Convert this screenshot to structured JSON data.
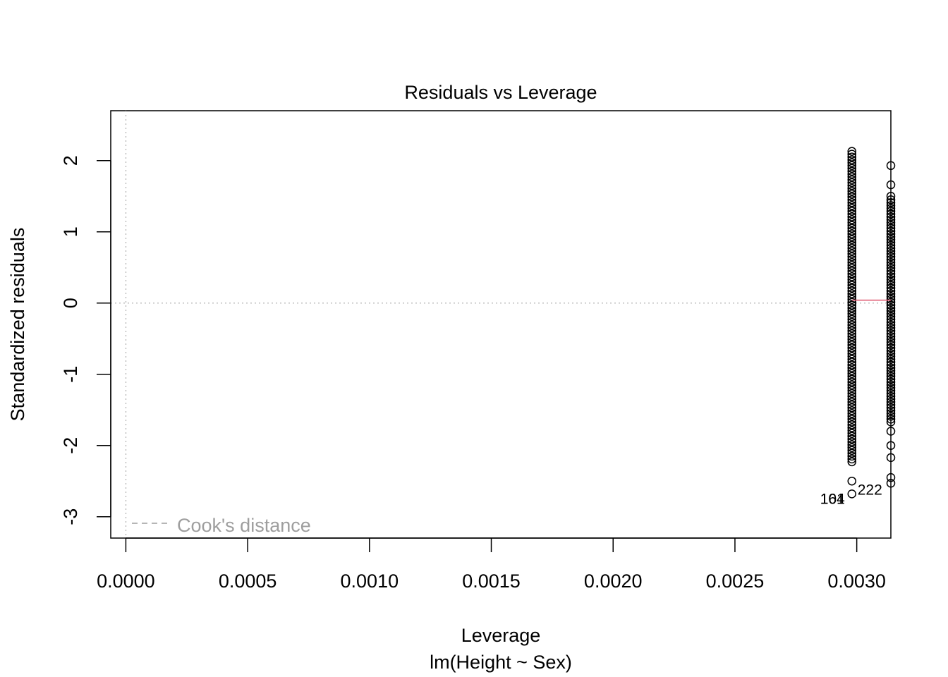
{
  "chart_data": {
    "type": "scatter",
    "title": "Residuals vs Leverage",
    "xlabel": "Leverage",
    "subtitle": "lm(Height ~ Sex)",
    "ylabel": "Standardized residuals",
    "xlim": [
      -6.2e-05,
      0.00314
    ],
    "ylim": [
      -3.3,
      2.7
    ],
    "x_ticks": [
      0.0,
      0.0005,
      0.001,
      0.0015,
      0.002,
      0.0025,
      0.003
    ],
    "x_tick_labels": [
      "0.0000",
      "0.0005",
      "0.0010",
      "0.0015",
      "0.0020",
      "0.0025",
      "0.0030"
    ],
    "y_ticks": [
      -3,
      -2,
      -1,
      0,
      1,
      2
    ],
    "y_tick_labels": [
      "-3",
      "-2",
      "-1",
      "0",
      "1",
      "2"
    ],
    "reference_lines": {
      "x": 0,
      "y": 0,
      "style": "dotted",
      "color": "#bebebe"
    },
    "point_color": "#000000",
    "smoother_color": "#DF536B",
    "smoother": {
      "x": [
        0.00298,
        0.00314
      ],
      "y": [
        0.04,
        0.04
      ]
    },
    "series": [
      {
        "x": 0.00298,
        "y": [
          2.13,
          2.09,
          2.05,
          2.01,
          1.97,
          1.93,
          1.89,
          1.85,
          1.81,
          1.77,
          1.73,
          1.69,
          1.65,
          1.61,
          1.57,
          1.53,
          1.49,
          1.45,
          1.41,
          1.37,
          1.33,
          1.29,
          1.25,
          1.21,
          1.17,
          1.13,
          1.09,
          1.05,
          1.01,
          0.97,
          0.93,
          0.89,
          0.85,
          0.81,
          0.77,
          0.73,
          0.69,
          0.65,
          0.61,
          0.57,
          0.53,
          0.49,
          0.45,
          0.41,
          0.37,
          0.33,
          0.29,
          0.25,
          0.21,
          0.17,
          0.13,
          0.09,
          0.05,
          0.01,
          -0.03,
          -0.07,
          -0.11,
          -0.15,
          -0.19,
          -0.23,
          -0.27,
          -0.31,
          -0.35,
          -0.39,
          -0.43,
          -0.47,
          -0.51,
          -0.55,
          -0.59,
          -0.63,
          -0.67,
          -0.71,
          -0.75,
          -0.79,
          -0.83,
          -0.87,
          -0.91,
          -0.95,
          -0.99,
          -1.03,
          -1.07,
          -1.11,
          -1.15,
          -1.19,
          -1.23,
          -1.27,
          -1.31,
          -1.35,
          -1.39,
          -1.43,
          -1.47,
          -1.51,
          -1.55,
          -1.59,
          -1.63,
          -1.67,
          -1.71,
          -1.75,
          -1.79,
          -1.83,
          -1.87,
          -1.91,
          -1.95,
          -1.99,
          -2.03,
          -2.07,
          -2.11,
          -2.15,
          -2.19,
          -2.23,
          -2.5,
          -2.68
        ]
      },
      {
        "x": 0.00314,
        "y": [
          1.93,
          1.66,
          1.5,
          1.45,
          1.41,
          1.37,
          1.33,
          1.29,
          1.25,
          1.21,
          1.17,
          1.13,
          1.09,
          1.05,
          1.01,
          0.97,
          0.93,
          0.89,
          0.85,
          0.81,
          0.77,
          0.73,
          0.69,
          0.65,
          0.61,
          0.57,
          0.53,
          0.49,
          0.45,
          0.41,
          0.37,
          0.33,
          0.29,
          0.25,
          0.21,
          0.17,
          0.13,
          0.09,
          0.05,
          0.01,
          -0.03,
          -0.07,
          -0.11,
          -0.15,
          -0.19,
          -0.23,
          -0.27,
          -0.31,
          -0.35,
          -0.39,
          -0.43,
          -0.47,
          -0.51,
          -0.55,
          -0.59,
          -0.63,
          -0.67,
          -0.71,
          -0.75,
          -0.79,
          -0.83,
          -0.87,
          -0.91,
          -0.95,
          -0.99,
          -1.03,
          -1.07,
          -1.11,
          -1.15,
          -1.19,
          -1.23,
          -1.27,
          -1.31,
          -1.35,
          -1.39,
          -1.43,
          -1.47,
          -1.51,
          -1.55,
          -1.59,
          -1.63,
          -1.67,
          -1.8,
          -2.0,
          -2.17,
          -2.45,
          -2.53
        ]
      }
    ],
    "point_labels": [
      {
        "text": "164",
        "x": 0.00298,
        "y": -2.75,
        "anchor": "end"
      },
      {
        "text": "101",
        "x": 0.00298,
        "y": -2.75,
        "anchor": "end"
      },
      {
        "text": "222",
        "x": 0.00298,
        "y": -2.62,
        "anchor": "start"
      }
    ],
    "legend": {
      "position": "bottom-left",
      "line_style": "dashed",
      "color": "#9e9e9e",
      "label": "Cook's distance"
    }
  }
}
